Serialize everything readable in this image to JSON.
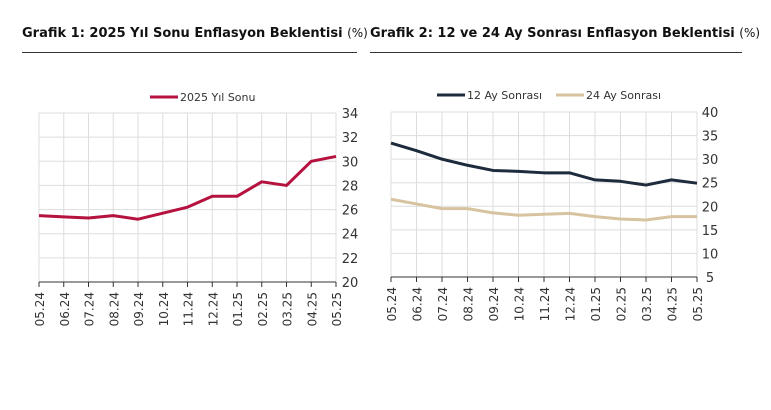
{
  "chart_data": [
    {
      "type": "line",
      "title": "Grafik 1: 2025 Yıl Sonu Enflasyon Beklentisi",
      "unit": "(%)",
      "categories": [
        "05.24",
        "06.24",
        "07.24",
        "08.24",
        "09.24",
        "10.24",
        "11.24",
        "12.24",
        "01.25",
        "02.25",
        "03.25",
        "04.25",
        "05.25"
      ],
      "series": [
        {
          "name": "2025 Yıl Sonu",
          "color": "#b5123f",
          "values": [
            25.5,
            25.4,
            25.3,
            25.5,
            25.2,
            25.7,
            26.2,
            27.1,
            27.1,
            28.3,
            28.0,
            30.0,
            30.4
          ]
        }
      ],
      "yticks": [
        20,
        22,
        24,
        26,
        28,
        30,
        32,
        34
      ],
      "ylim": [
        20,
        34
      ],
      "grid": true,
      "legend": "top-center"
    },
    {
      "type": "line",
      "title": "Grafik 2: 12 ve 24 Ay Sonrası Enflasyon Beklentisi",
      "unit": "(%)",
      "categories": [
        "05.24",
        "06.24",
        "07.24",
        "08.24",
        "09.24",
        "10.24",
        "11.24",
        "12.24",
        "01.25",
        "02.25",
        "03.25",
        "04.25",
        "05.25"
      ],
      "series": [
        {
          "name": "12 Ay Sonrası",
          "color": "#1e2b3c",
          "values": [
            33.4,
            31.8,
            30.0,
            28.7,
            27.6,
            27.4,
            27.1,
            27.1,
            25.6,
            25.3,
            24.5,
            25.6,
            24.9
          ]
        },
        {
          "name": "24 Ay Sonrası",
          "color": "#d8c3a0",
          "values": [
            21.5,
            20.5,
            19.5,
            19.5,
            18.6,
            18.1,
            18.3,
            18.5,
            17.8,
            17.3,
            17.1,
            17.8,
            17.8
          ]
        }
      ],
      "yticks": [
        5,
        10,
        15,
        20,
        25,
        30,
        35,
        40
      ],
      "ylim": [
        5,
        40
      ],
      "grid": true,
      "legend": "top-center"
    }
  ]
}
